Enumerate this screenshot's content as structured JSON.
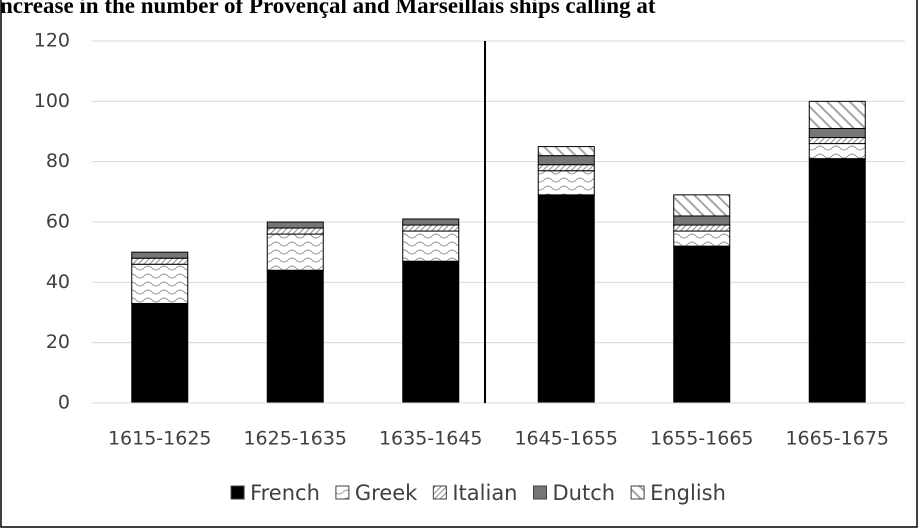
{
  "chart_data": {
    "type": "bar",
    "stacked": true,
    "title": "ncrease in the number of Provençal and Marseillais ships calling at",
    "categories": [
      "1615-1625",
      "1625-1635",
      "1635-1645",
      "1645-1655",
      "1655-1665",
      "1665-1675"
    ],
    "series": [
      {
        "name": "French",
        "color": "#000000",
        "values": [
          33,
          44,
          47,
          69,
          52,
          81
        ]
      },
      {
        "name": "Greek",
        "color": "#9a9a9a",
        "values": [
          13,
          12,
          10,
          8,
          5,
          5
        ]
      },
      {
        "name": "Italian",
        "color": "#8a8a8a",
        "values": [
          2,
          2,
          2,
          2,
          2,
          2
        ]
      },
      {
        "name": "Dutch",
        "color": "#767676",
        "values": [
          2,
          2,
          2,
          3,
          3,
          3
        ]
      },
      {
        "name": "English",
        "color": "#a6a6a6",
        "values": [
          0,
          0,
          0,
          3,
          7,
          9
        ]
      }
    ],
    "ylim": [
      0,
      120
    ],
    "yticks": [
      0,
      20,
      40,
      60,
      80,
      100,
      120
    ],
    "grid": true,
    "legend": "bottom"
  }
}
